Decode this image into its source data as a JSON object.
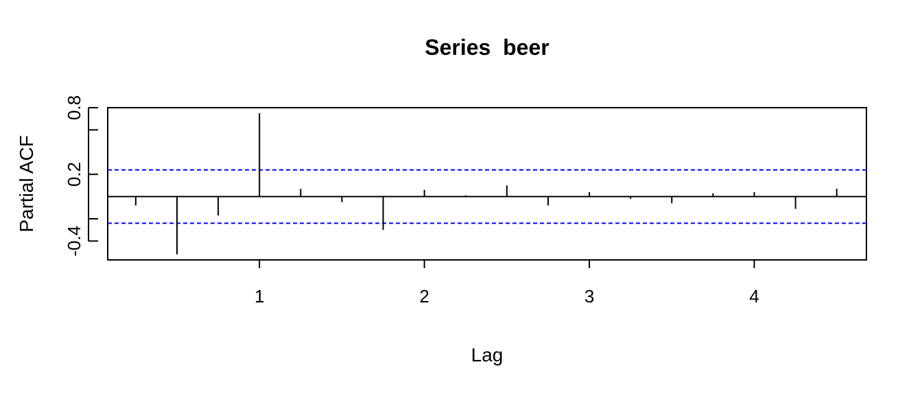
{
  "chart_data": {
    "type": "bar",
    "title": "Series  beer",
    "xlabel": "Lag",
    "ylabel": "Partial ACF",
    "x": [
      0.25,
      0.5,
      0.75,
      1.0,
      1.25,
      1.5,
      1.75,
      2.0,
      2.25,
      2.5,
      2.75,
      3.0,
      3.25,
      3.5,
      3.75,
      4.0,
      4.25,
      4.5
    ],
    "values": [
      -0.08,
      -0.52,
      -0.17,
      0.75,
      0.07,
      -0.05,
      -0.3,
      0.06,
      0.01,
      0.1,
      -0.08,
      0.04,
      -0.02,
      -0.06,
      0.03,
      0.04,
      -0.11,
      0.07
    ],
    "confidence_limits": [
      0.24,
      -0.24
    ],
    "confidence_line_color": "#0000ff",
    "xlim": [
      0.08,
      4.68
    ],
    "ylim": [
      -0.57,
      0.8
    ],
    "xticks": [
      "1",
      "2",
      "3",
      "4"
    ],
    "yticks_labeled": [
      "-0.4",
      "0.2",
      "0.8"
    ],
    "yticks_minor": [
      -0.2,
      0.6
    ],
    "grid": false
  }
}
